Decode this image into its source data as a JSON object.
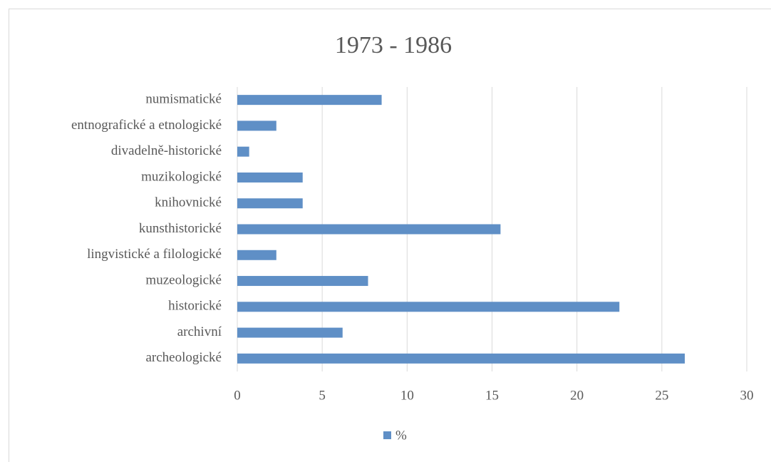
{
  "chart_data": {
    "type": "bar",
    "orientation": "horizontal",
    "title": "1973 - 1986",
    "categories": [
      "archeologické",
      "archivní",
      "historické",
      "muzeologické",
      "lingvistické a filologické",
      "kunsthistorické",
      "knihovnické",
      "muzikologické",
      "divadelně-historické",
      "entnografické a etnologické",
      "numismatické"
    ],
    "series": [
      {
        "name": "%",
        "color": "#5f8fc6",
        "values": [
          26.35,
          6.2,
          22.5,
          7.7,
          2.3,
          15.5,
          3.85,
          3.85,
          0.7,
          2.3,
          8.5
        ]
      }
    ],
    "xlim": [
      0,
      30
    ],
    "xticks": [
      0,
      5,
      10,
      15,
      20,
      25,
      30
    ],
    "grid": true,
    "legend": "bottom"
  }
}
